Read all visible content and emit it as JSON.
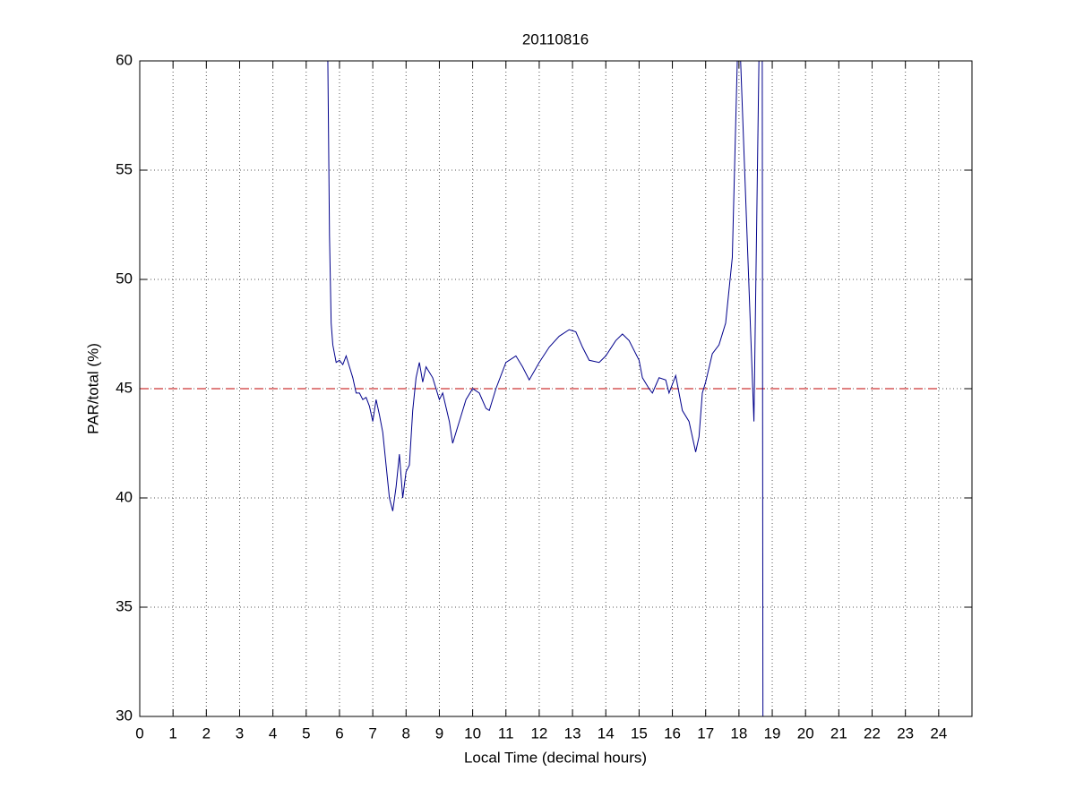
{
  "chart_data": {
    "type": "line",
    "title": "20110816",
    "xlabel": "Local Time (decimal hours)",
    "ylabel": "PAR/total (%)",
    "x": [
      5.65,
      5.7,
      5.75,
      5.8,
      5.9,
      6.0,
      6.1,
      6.2,
      6.3,
      6.4,
      6.5,
      6.6,
      6.7,
      6.8,
      6.9,
      7.0,
      7.1,
      7.2,
      7.3,
      7.4,
      7.5,
      7.6,
      7.7,
      7.8,
      7.9,
      8.0,
      8.1,
      8.2,
      8.3,
      8.4,
      8.5,
      8.6,
      8.8,
      9.0,
      9.1,
      9.3,
      9.4,
      9.6,
      9.8,
      10.0,
      10.2,
      10.4,
      10.5,
      10.7,
      11.0,
      11.3,
      11.5,
      11.7,
      12.0,
      12.3,
      12.6,
      12.9,
      13.1,
      13.3,
      13.5,
      13.8,
      14.0,
      14.3,
      14.5,
      14.7,
      15.0,
      15.1,
      15.3,
      15.4,
      15.6,
      15.8,
      15.9,
      16.1,
      16.3,
      16.5,
      16.7,
      16.8,
      16.9,
      17.0,
      17.2,
      17.4,
      17.6,
      17.8,
      17.95,
      18.0,
      18.05,
      18.45,
      18.6,
      18.65,
      18.7,
      18.72
    ],
    "series": [
      {
        "color": "#00008b",
        "values": [
          60,
          52,
          48,
          47,
          46.2,
          46.3,
          46.1,
          46.5,
          46.0,
          45.5,
          44.8,
          44.8,
          44.5,
          44.6,
          44.2,
          43.5,
          44.5,
          43.8,
          43.0,
          41.5,
          40.0,
          39.4,
          40.5,
          42.0,
          40.0,
          41.2,
          41.5,
          44.0,
          45.5,
          46.2,
          45.3,
          46.0,
          45.5,
          44.5,
          44.8,
          43.5,
          42.5,
          43.5,
          44.5,
          45.0,
          44.8,
          44.1,
          44.0,
          45.0,
          46.2,
          46.5,
          46.0,
          45.4,
          46.2,
          46.9,
          47.4,
          47.7,
          47.6,
          46.9,
          46.3,
          46.2,
          46.5,
          47.2,
          47.5,
          47.2,
          46.3,
          45.5,
          45.0,
          44.8,
          45.5,
          45.4,
          44.8,
          45.6,
          44.0,
          43.5,
          42.1,
          42.8,
          44.8,
          45.3,
          46.6,
          47.0,
          48.0,
          51.0,
          60,
          null,
          60,
          43.5,
          60,
          null,
          60,
          30
        ]
      }
    ],
    "reference_line": {
      "value": 45,
      "x": [
        0,
        24
      ],
      "color": "#c00000"
    },
    "xlim": [
      0,
      25
    ],
    "xticks": [
      0,
      1,
      2,
      3,
      4,
      5,
      6,
      7,
      8,
      9,
      10,
      11,
      12,
      13,
      14,
      15,
      16,
      17,
      18,
      19,
      20,
      21,
      22,
      23,
      24
    ],
    "ylim": [
      30,
      60
    ],
    "yticks": [
      30,
      35,
      40,
      45,
      50,
      55,
      60
    ],
    "grid": true
  }
}
